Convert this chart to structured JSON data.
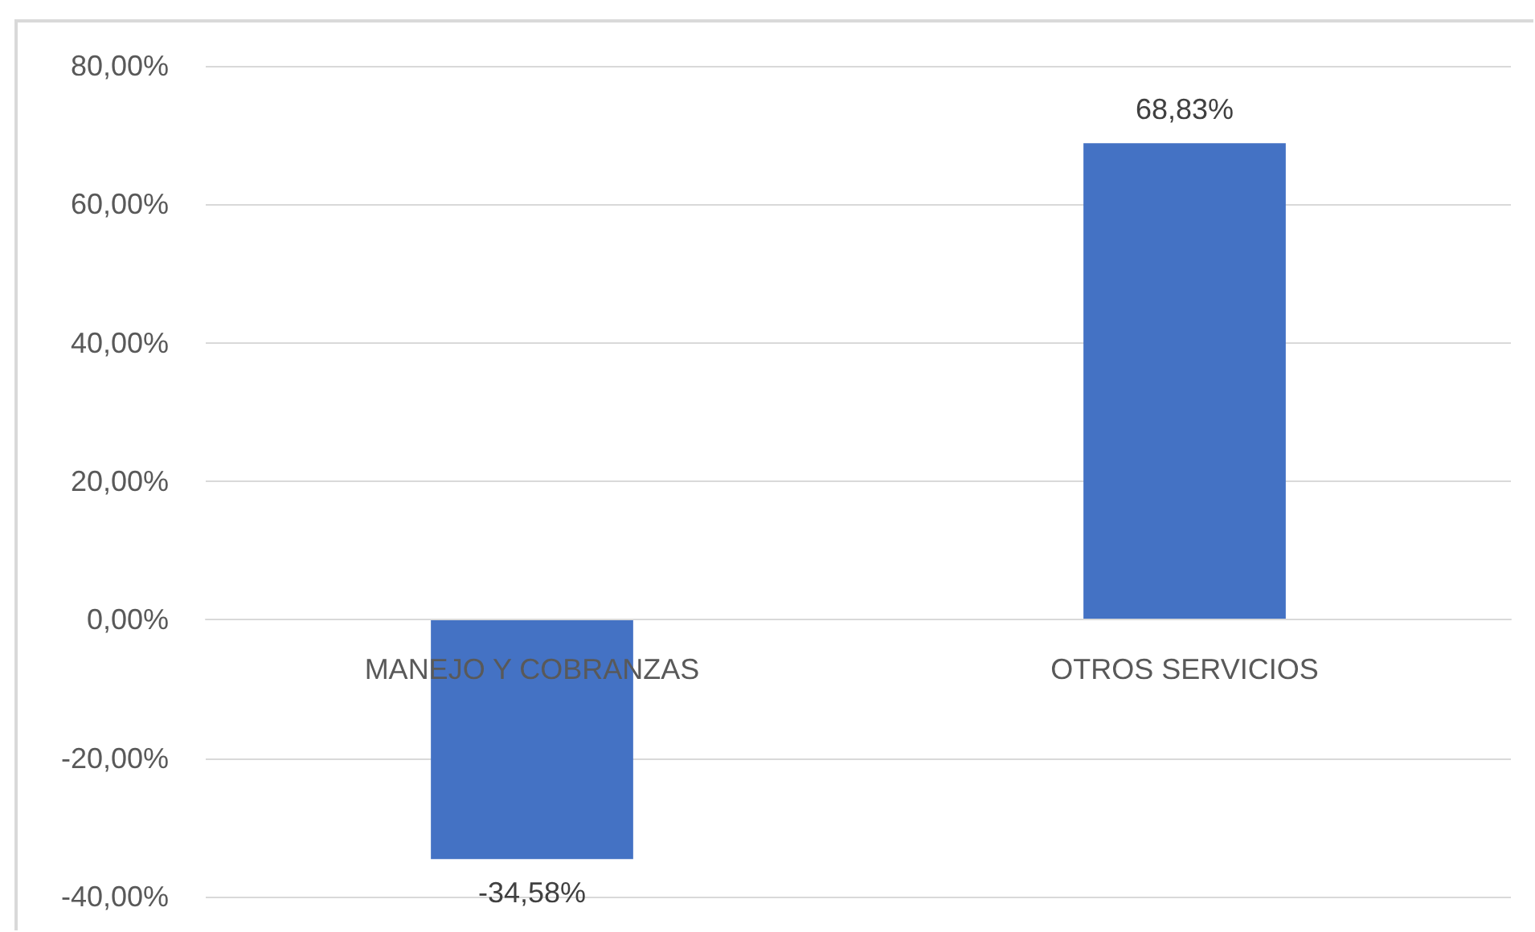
{
  "chart_data": {
    "type": "bar",
    "categories": [
      "MANEJO Y COBRANZAS",
      "OTROS SERVICIOS"
    ],
    "values": [
      -34.58,
      68.83
    ],
    "color": "#4472c4",
    "ylim": [
      -40,
      80
    ],
    "yticks": [
      {
        "value": -40,
        "label": "-40,00%"
      },
      {
        "value": -20,
        "label": "-20,00%"
      },
      {
        "value": 0,
        "label": "0,00%"
      },
      {
        "value": 20,
        "label": "20,00%"
      },
      {
        "value": 40,
        "label": "40,00%"
      },
      {
        "value": 60,
        "label": "60,00%"
      },
      {
        "value": 80,
        "label": "80,00%"
      }
    ],
    "grid": "y",
    "value_labels": [
      "-34,58%",
      "68,83%"
    ]
  }
}
